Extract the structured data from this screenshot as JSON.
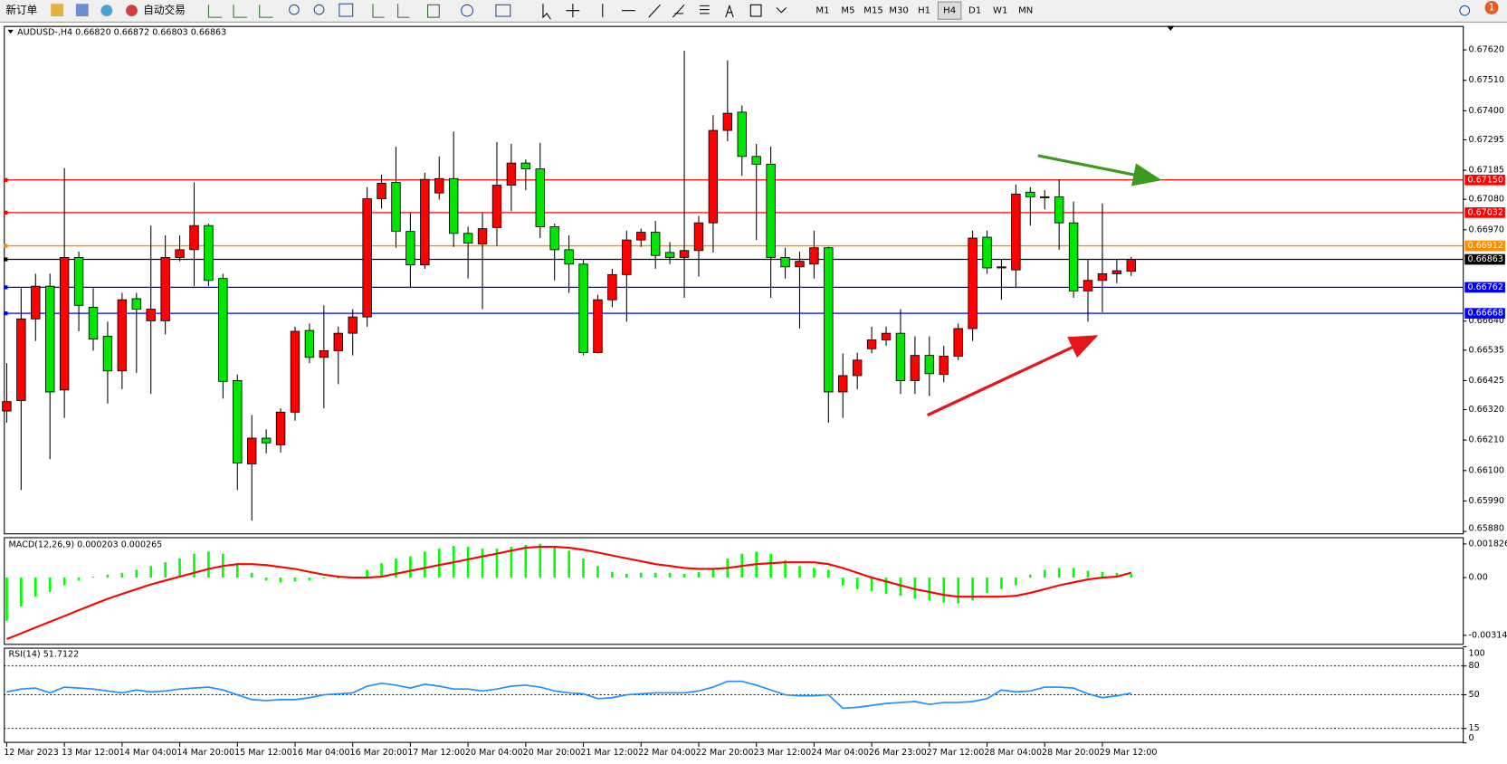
{
  "toolbar": {
    "new_order": "新订单",
    "auto_trading": "自动交易",
    "timeframes": [
      "M1",
      "M5",
      "M15",
      "M30",
      "H1",
      "H4",
      "D1",
      "W1",
      "MN"
    ],
    "active_timeframe": "H4",
    "badge": "1"
  },
  "chart_data": [
    {
      "type": "candlestick",
      "title": "AUDUSD-,H4  0.66820 0.66872 0.66803 0.66863",
      "categories": [
        "12 Mar 2023",
        null,
        null,
        null,
        "13 Mar 12:00",
        null,
        null,
        null,
        "14 Mar 04:00",
        null,
        null,
        null,
        "14 Mar 20:00",
        null,
        null,
        null,
        "15 Mar 12:00",
        null,
        null,
        null,
        "16 Mar 04:00",
        null,
        null,
        null,
        "16 Mar 20:00",
        null,
        null,
        null,
        "17 Mar 12:00",
        null,
        null,
        null,
        "20 Mar 04:00",
        null,
        null,
        null,
        "20 Mar 20:00",
        null,
        null,
        null,
        "21 Mar 12:00",
        null,
        null,
        null,
        "22 Mar 04:00",
        null,
        null,
        null,
        "22 Mar 20:00",
        null,
        null,
        null,
        "23 Mar 12:00",
        null,
        null,
        null,
        "24 Mar 04:00",
        null,
        null,
        null,
        "26 Mar 23:00",
        null,
        null,
        null,
        "27 Mar 12:00",
        null,
        null,
        null,
        "28 Mar 04:00",
        null,
        null,
        null,
        "28 Mar 20:00",
        null,
        null,
        null,
        "29 Mar 12:00",
        null,
        null
      ],
      "open": [
        0.66315,
        0.66353,
        0.66648,
        0.66766,
        0.66391,
        0.6687,
        0.6669,
        0.66585,
        0.6646,
        0.66721,
        0.66641,
        0.66641,
        0.6687,
        0.66898,
        0.66985,
        0.66794,
        0.66425,
        0.66124,
        0.66217,
        0.66193,
        0.66311,
        0.66606,
        0.66509,
        0.66533,
        0.66596,
        0.66655,
        0.67082,
        0.67141,
        0.66964,
        0.66843,
        0.67103,
        0.67155,
        0.66957,
        0.66919,
        0.66978,
        0.67131,
        0.67211,
        0.6719,
        0.66981,
        0.66898,
        0.66846,
        0.66526,
        0.66717,
        0.66808,
        0.66933,
        0.66961,
        0.66888,
        0.6687,
        0.66895,
        0.66995,
        0.67329,
        0.67395,
        0.67235,
        0.67207,
        0.6687,
        0.66836,
        0.66846,
        0.66905,
        0.66384,
        0.66443,
        0.6654,
        0.66572,
        0.66596,
        0.66425,
        0.66516,
        0.66447,
        0.66513,
        0.66613,
        0.66943,
        0.66832,
        0.66825,
        0.67106,
        0.67089,
        0.67089,
        0.66995,
        0.66749,
        0.66787,
        0.66811,
        0.6682
      ],
      "high": [
        0.66488,
        0.66759,
        0.66811,
        0.66811,
        0.67193,
        0.66891,
        0.66759,
        0.66638,
        0.66742,
        0.66742,
        0.66985,
        0.6695,
        0.6695,
        0.67141,
        0.66992,
        0.66811,
        0.66447,
        0.66301,
        0.66249,
        0.66325,
        0.6662,
        0.66631,
        0.66697,
        0.6662,
        0.66683,
        0.67124,
        0.67169,
        0.6727,
        0.6703,
        0.67176,
        0.67235,
        0.67325,
        0.66981,
        0.6703,
        0.67287,
        0.6728,
        0.67224,
        0.67284,
        0.66992,
        0.6695,
        0.66863,
        0.66735,
        0.66829,
        0.66967,
        0.66974,
        0.67002,
        0.66926,
        0.67617,
        0.6702,
        0.67384,
        0.67582,
        0.67419,
        0.6728,
        0.6727,
        0.66905,
        0.66891,
        0.66967,
        0.66908,
        0.66523,
        0.66526,
        0.6662,
        0.6662,
        0.66683,
        0.66585,
        0.66585,
        0.66551,
        0.66631,
        0.66967,
        0.66967,
        0.66863,
        0.67134,
        0.67124,
        0.67113,
        0.67152,
        0.67072,
        0.66863,
        0.67065,
        0.66863,
        0.66872
      ],
      "low": [
        0.66273,
        0.6603,
        0.66568,
        0.66141,
        0.6629,
        0.66603,
        0.66533,
        0.66342,
        0.66394,
        0.66453,
        0.66377,
        0.66592,
        0.66856,
        0.66766,
        0.66766,
        0.6636,
        0.6603,
        0.65919,
        0.66162,
        0.66165,
        0.6628,
        0.66488,
        0.66325,
        0.66412,
        0.66516,
        0.6662,
        0.67047,
        0.66905,
        0.66759,
        0.66829,
        0.67079,
        0.66908,
        0.66794,
        0.66683,
        0.66912,
        0.67037,
        0.67113,
        0.6694,
        0.66787,
        0.66742,
        0.66516,
        0.66523,
        0.6669,
        0.66638,
        0.66908,
        0.66829,
        0.66846,
        0.66724,
        0.66801,
        0.66888,
        0.6729,
        0.67165,
        0.66933,
        0.66724,
        0.66794,
        0.66613,
        0.66794,
        0.66273,
        0.6629,
        0.66394,
        0.66523,
        0.66551,
        0.66377,
        0.66377,
        0.6637,
        0.66419,
        0.66499,
        0.66568,
        0.66811,
        0.66717,
        0.66759,
        0.66985,
        0.67044,
        0.66898,
        0.66724,
        0.66638,
        0.66672,
        0.66777,
        0.66803
      ],
      "close": [
        0.66349,
        0.66648,
        0.66766,
        0.66384,
        0.6687,
        0.66697,
        0.66575,
        0.6646,
        0.66717,
        0.66683,
        0.66683,
        0.6687,
        0.66898,
        0.66985,
        0.66787,
        0.66422,
        0.66127,
        0.66217,
        0.662,
        0.66311,
        0.66603,
        0.66509,
        0.66533,
        0.66596,
        0.66655,
        0.67082,
        0.67138,
        0.66964,
        0.66843,
        0.67152,
        0.67155,
        0.66957,
        0.66922,
        0.66974,
        0.67131,
        0.67211,
        0.6719,
        0.66981,
        0.66898,
        0.66846,
        0.66526,
        0.66717,
        0.66808,
        0.66933,
        0.66961,
        0.66877,
        0.6687,
        0.66895,
        0.66995,
        0.67329,
        0.67391,
        0.67235,
        0.67207,
        0.6687,
        0.66836,
        0.66856,
        0.66905,
        0.66384,
        0.66443,
        0.66499,
        0.66572,
        0.66596,
        0.66425,
        0.66516,
        0.6645,
        0.66513,
        0.66613,
        0.6694,
        0.66832,
        0.66836,
        0.67099,
        0.67089,
        0.67086,
        0.66995,
        0.66749,
        0.66787,
        0.66811,
        0.66822,
        0.66863
      ],
      "up_color": "#ff0000",
      "down_color": "#00e600",
      "ylim": [
        0.65873,
        0.67703
      ],
      "yticks": [
        {
          "value": 0.6762,
          "label": "0.67620"
        },
        {
          "value": 0.6751,
          "label": "0.67510"
        },
        {
          "value": 0.674,
          "label": "0.67400"
        },
        {
          "value": 0.67295,
          "label": "0.67295"
        },
        {
          "value": 0.67185,
          "label": "0.67185"
        },
        {
          "value": 0.6708,
          "label": "0.67080"
        },
        {
          "value": 0.6697,
          "label": "0.66970"
        },
        {
          "value": 0.6664,
          "label": "0.66640"
        },
        {
          "value": 0.66535,
          "label": "0.66535"
        },
        {
          "value": 0.66425,
          "label": "0.66425"
        },
        {
          "value": 0.6632,
          "label": "0.66320"
        },
        {
          "value": 0.6621,
          "label": "0.66210"
        },
        {
          "value": 0.661,
          "label": "0.66100"
        },
        {
          "value": 0.6599,
          "label": "0.65990"
        },
        {
          "value": 0.6588,
          "label": "0.65880"
        }
      ],
      "hlines": [
        {
          "value": 0.6715,
          "label": "0.67150",
          "color": "#ff0000"
        },
        {
          "value": 0.67032,
          "label": "0.67032",
          "color": "#ff0000"
        },
        {
          "value": 0.66912,
          "label": "0.66912",
          "color": "#ff8c00"
        },
        {
          "value": 0.66863,
          "label": "0.66863",
          "color": "#000000"
        },
        {
          "value": 0.66762,
          "label": "0.66762",
          "color": "#0000ff"
        },
        {
          "value": 0.66668,
          "label": "0.66668",
          "color": "#0000ff"
        }
      ]
    },
    {
      "type": "macd",
      "title": "MACD(12,26,9) 0.000203 0.000265",
      "histogram": {
        "color": "#00ff00",
        "values": [
          -0.00235,
          -0.00157,
          -0.00104,
          -0.00078,
          -0.00042,
          -0.00016,
          5e-05,
          0.00016,
          0.00026,
          0.00042,
          0.00063,
          0.00083,
          0.00104,
          0.0013,
          0.00141,
          0.0013,
          0.00078,
          0.00026,
          -0.00016,
          -0.00026,
          -0.00021,
          -0.00016,
          -5e-05,
          -5e-05,
          5e-05,
          0.00042,
          0.00078,
          0.00104,
          0.00115,
          0.00141,
          0.00157,
          0.00172,
          0.00167,
          0.00157,
          0.00157,
          0.00167,
          0.00177,
          0.00183,
          0.00172,
          0.00146,
          0.00104,
          0.00063,
          0.00031,
          0.00021,
          0.00026,
          0.00026,
          0.00026,
          0.00021,
          0.00031,
          0.00052,
          0.00104,
          0.0013,
          0.00141,
          0.0013,
          0.00094,
          0.00063,
          0.00052,
          0.00042,
          -0.00042,
          -0.00063,
          -0.00073,
          -0.00089,
          -0.00099,
          -0.00115,
          -0.00125,
          -0.00136,
          -0.00141,
          -0.00125,
          -0.00083,
          -0.00063,
          -0.00042,
          0.00016,
          0.00042,
          0.00052,
          0.00052,
          0.00037,
          0.00031,
          0.00026,
          0.000203
        ]
      },
      "signal": {
        "color": "#ff0000",
        "values": [
          -0.00334,
          -0.00303,
          -0.00271,
          -0.0024,
          -0.00209,
          -0.00177,
          -0.00146,
          -0.00115,
          -0.00089,
          -0.00063,
          -0.00037,
          -0.00016,
          5e-05,
          0.00026,
          0.00047,
          0.00063,
          0.00073,
          0.00073,
          0.00068,
          0.00057,
          0.00047,
          0.00031,
          0.00016,
          5e-05,
          0,
          0,
          5e-05,
          0.00021,
          0.00037,
          0.00052,
          0.00068,
          0.00083,
          0.00099,
          0.00115,
          0.0013,
          0.00146,
          0.00162,
          0.00167,
          0.00167,
          0.00162,
          0.00151,
          0.00136,
          0.0012,
          0.00104,
          0.00089,
          0.00073,
          0.00063,
          0.00052,
          0.00047,
          0.00047,
          0.00052,
          0.00063,
          0.00073,
          0.00078,
          0.00083,
          0.00083,
          0.00083,
          0.00073,
          0.00052,
          0.00026,
          0,
          -0.00021,
          -0.00042,
          -0.00063,
          -0.00078,
          -0.00094,
          -0.00104,
          -0.00104,
          -0.00104,
          -0.00104,
          -0.00099,
          -0.00083,
          -0.00063,
          -0.00042,
          -0.00026,
          -0.0001,
          0,
          5e-05,
          0.000265
        ]
      },
      "ylim": [
        -0.0036,
        0.00214
      ],
      "yticks": [
        0.001826,
        {
          "value": 0,
          "label": "0.00"
        },
        -0.00314
      ]
    },
    {
      "type": "line",
      "title": "RSI(14) 51.7122",
      "color": "#1e90ff",
      "values": [
        53,
        56,
        57,
        52,
        58,
        57,
        56,
        54,
        52,
        55,
        53,
        54,
        56,
        57,
        58,
        55,
        50,
        45,
        44,
        45,
        45,
        47,
        50,
        51,
        52,
        59,
        62,
        60,
        57,
        61,
        59,
        56,
        56,
        54,
        56,
        59,
        60,
        58,
        54,
        52,
        51,
        46,
        47,
        50,
        51,
        52,
        52,
        52,
        54,
        58,
        64,
        64,
        60,
        55,
        50,
        49,
        49,
        50,
        36,
        37,
        39,
        41,
        42,
        43,
        40,
        42,
        42,
        43,
        46,
        55,
        53,
        54,
        58,
        58,
        57,
        51,
        47,
        49,
        51.7122
      ],
      "ylim": [
        0,
        100
      ],
      "yticks": [
        100,
        80,
        50,
        15,
        0
      ]
    }
  ]
}
